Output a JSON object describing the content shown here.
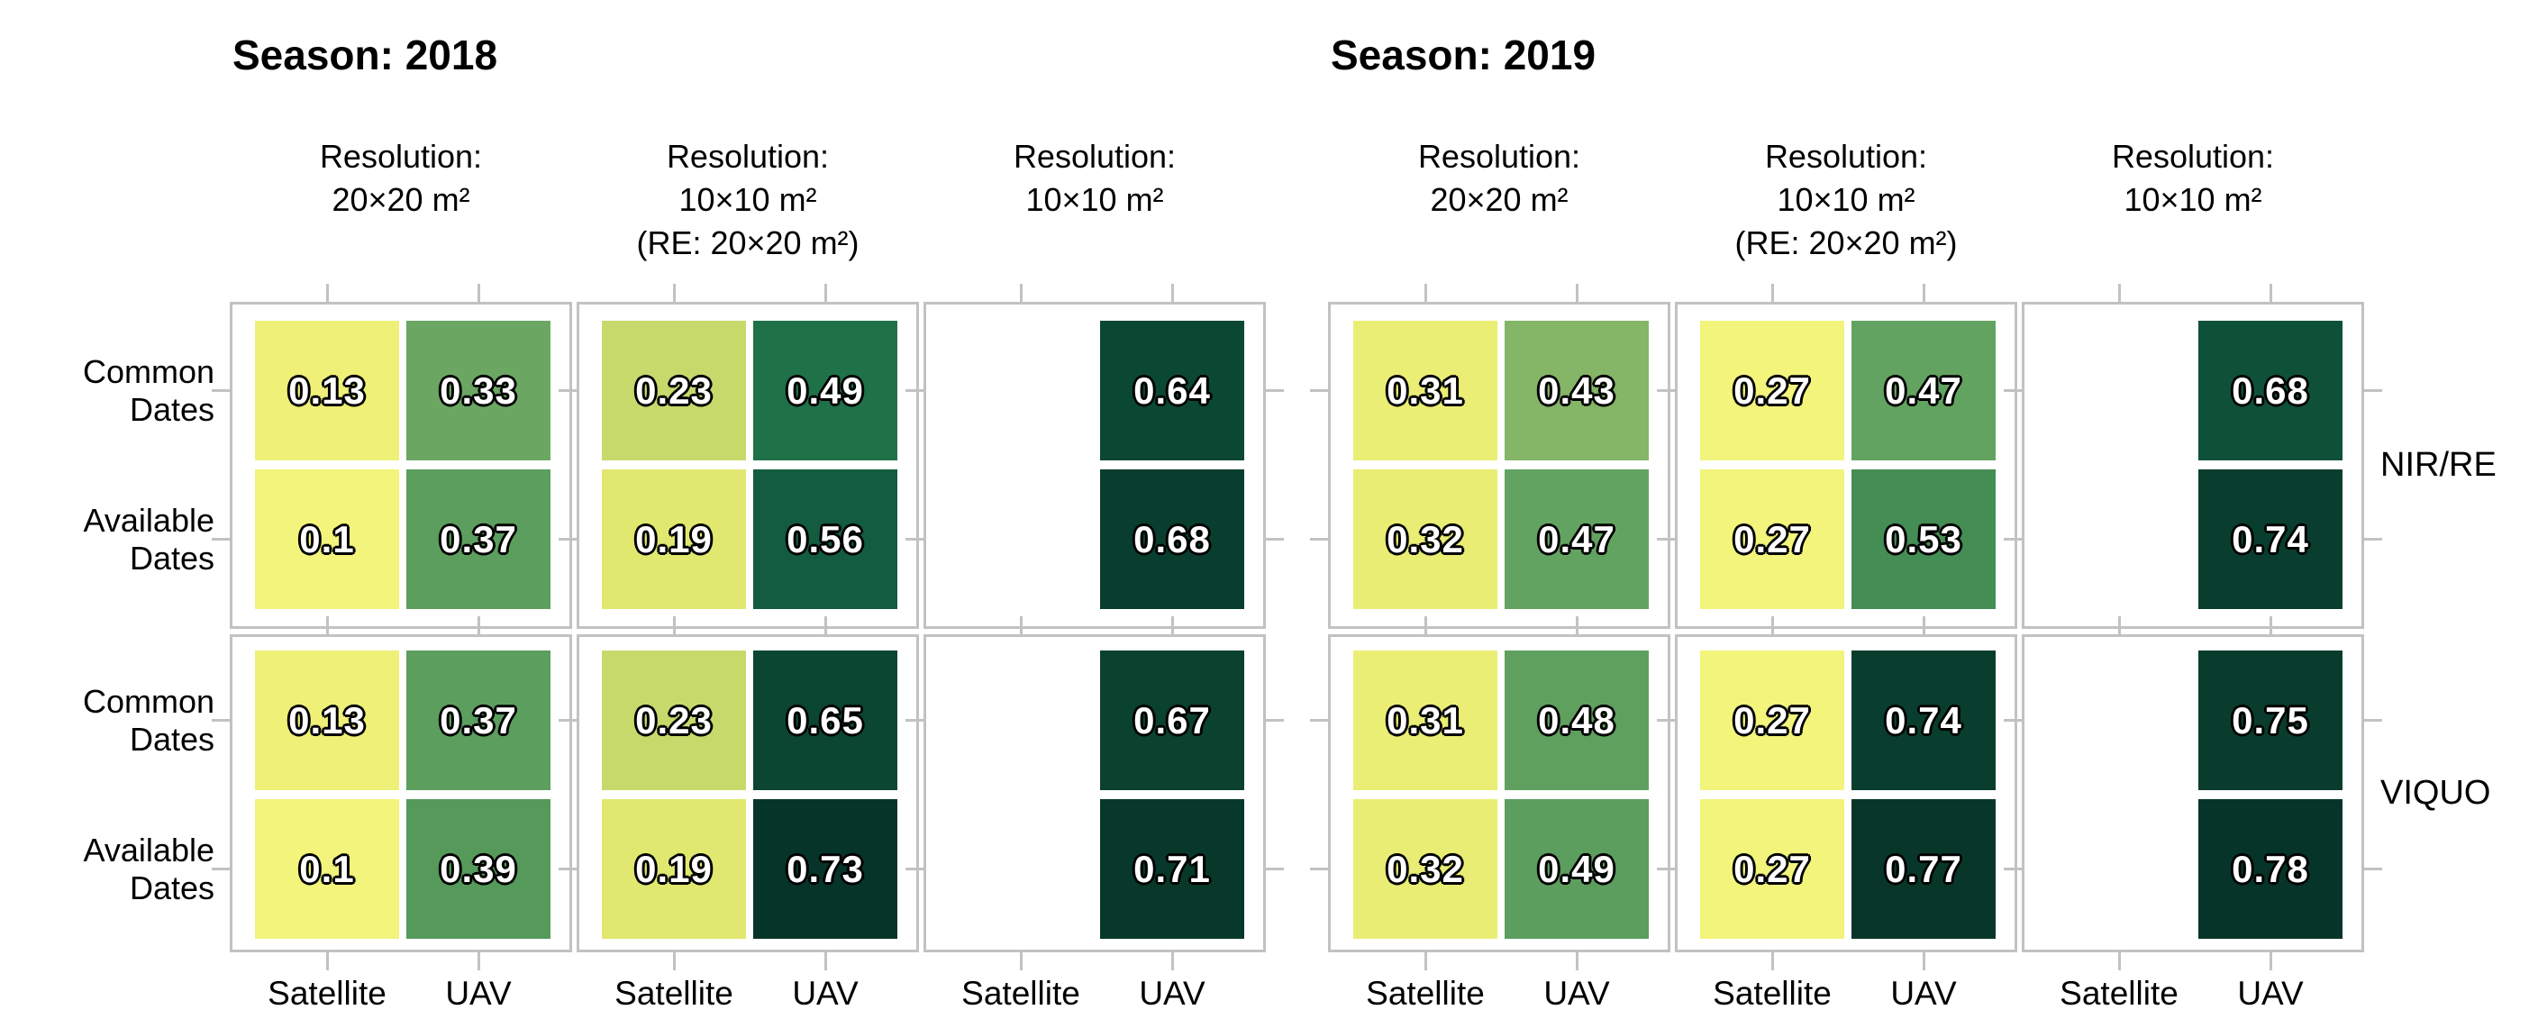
{
  "chart_data": {
    "type": "heatmap",
    "facet_row_labels": [
      "NIR/RE",
      "VIQUO"
    ],
    "x_categories": [
      "Satellite",
      "UAV"
    ],
    "y_categories": [
      "Common Dates",
      "Available Dates"
    ],
    "y_category_lines": [
      [
        "Common",
        "Dates"
      ],
      [
        "Available",
        "Dates"
      ]
    ],
    "resolution_headers": [
      [
        "Resolution:",
        "20×20 m²"
      ],
      [
        "Resolution:",
        "10×10 m²",
        "(RE: 20×20 m²)"
      ],
      [
        "Resolution:",
        "10×10 m²"
      ]
    ],
    "colors": {
      "background": "#ffffff",
      "panel_border": "#c2c2c2",
      "tick": "#c2c2c2",
      "text": "#000000",
      "cell_text": "#ffffff",
      "cell_text_outline": "#000000"
    },
    "color_scale": {
      "normalization": "per-season",
      "stops": [
        [
          0.0,
          "#f2f47c"
        ],
        [
          0.05,
          "#eef078"
        ],
        [
          0.1,
          "#e9ed73"
        ],
        [
          0.15,
          "#dfe76f"
        ],
        [
          0.22,
          "#c3d66b"
        ],
        [
          0.3,
          "#8cb968"
        ],
        [
          0.37,
          "#68a663"
        ],
        [
          0.46,
          "#559a5b"
        ],
        [
          0.62,
          "#1f7148"
        ],
        [
          0.73,
          "#135c3f"
        ],
        [
          0.86,
          "#0b4833"
        ],
        [
          0.93,
          "#093d2d"
        ],
        [
          1.0,
          "#073428"
        ]
      ]
    },
    "seasons": [
      {
        "title": "Season: 2018",
        "color_domain": [
          0.1,
          0.73
        ],
        "groups": [
          {
            "label": "NIR/RE",
            "rows": [
              {
                "label": "Common Dates",
                "panels": [
                  [
                    0.13,
                    0.33
                  ],
                  [
                    0.23,
                    0.49
                  ],
                  [
                    null,
                    0.64
                  ]
                ]
              },
              {
                "label": "Available Dates",
                "panels": [
                  [
                    0.1,
                    0.37
                  ],
                  [
                    0.19,
                    0.56
                  ],
                  [
                    null,
                    0.68
                  ]
                ]
              }
            ]
          },
          {
            "label": "VIQUO",
            "rows": [
              {
                "label": "Common Dates",
                "panels": [
                  [
                    0.13,
                    0.37
                  ],
                  [
                    0.23,
                    0.65
                  ],
                  [
                    null,
                    0.67
                  ]
                ]
              },
              {
                "label": "Available Dates",
                "panels": [
                  [
                    0.1,
                    0.39
                  ],
                  [
                    0.19,
                    0.73
                  ],
                  [
                    null,
                    0.71
                  ]
                ]
              }
            ]
          }
        ]
      },
      {
        "title": "Season: 2019",
        "color_domain": [
          0.27,
          0.78
        ],
        "groups": [
          {
            "label": "NIR/RE",
            "rows": [
              {
                "label": "Common Dates",
                "panels": [
                  [
                    0.31,
                    0.43
                  ],
                  [
                    0.27,
                    0.47
                  ],
                  [
                    null,
                    0.68
                  ]
                ]
              },
              {
                "label": "Available Dates",
                "panels": [
                  [
                    0.32,
                    0.47
                  ],
                  [
                    0.27,
                    0.53
                  ],
                  [
                    null,
                    0.74
                  ]
                ]
              }
            ]
          },
          {
            "label": "VIQUO",
            "rows": [
              {
                "label": "Common Dates",
                "panels": [
                  [
                    0.31,
                    0.48
                  ],
                  [
                    0.27,
                    0.74
                  ],
                  [
                    null,
                    0.75
                  ]
                ]
              },
              {
                "label": "Available Dates",
                "panels": [
                  [
                    0.32,
                    0.49
                  ],
                  [
                    0.27,
                    0.77
                  ],
                  [
                    null,
                    0.78
                  ]
                ]
              }
            ]
          }
        ]
      }
    ]
  }
}
